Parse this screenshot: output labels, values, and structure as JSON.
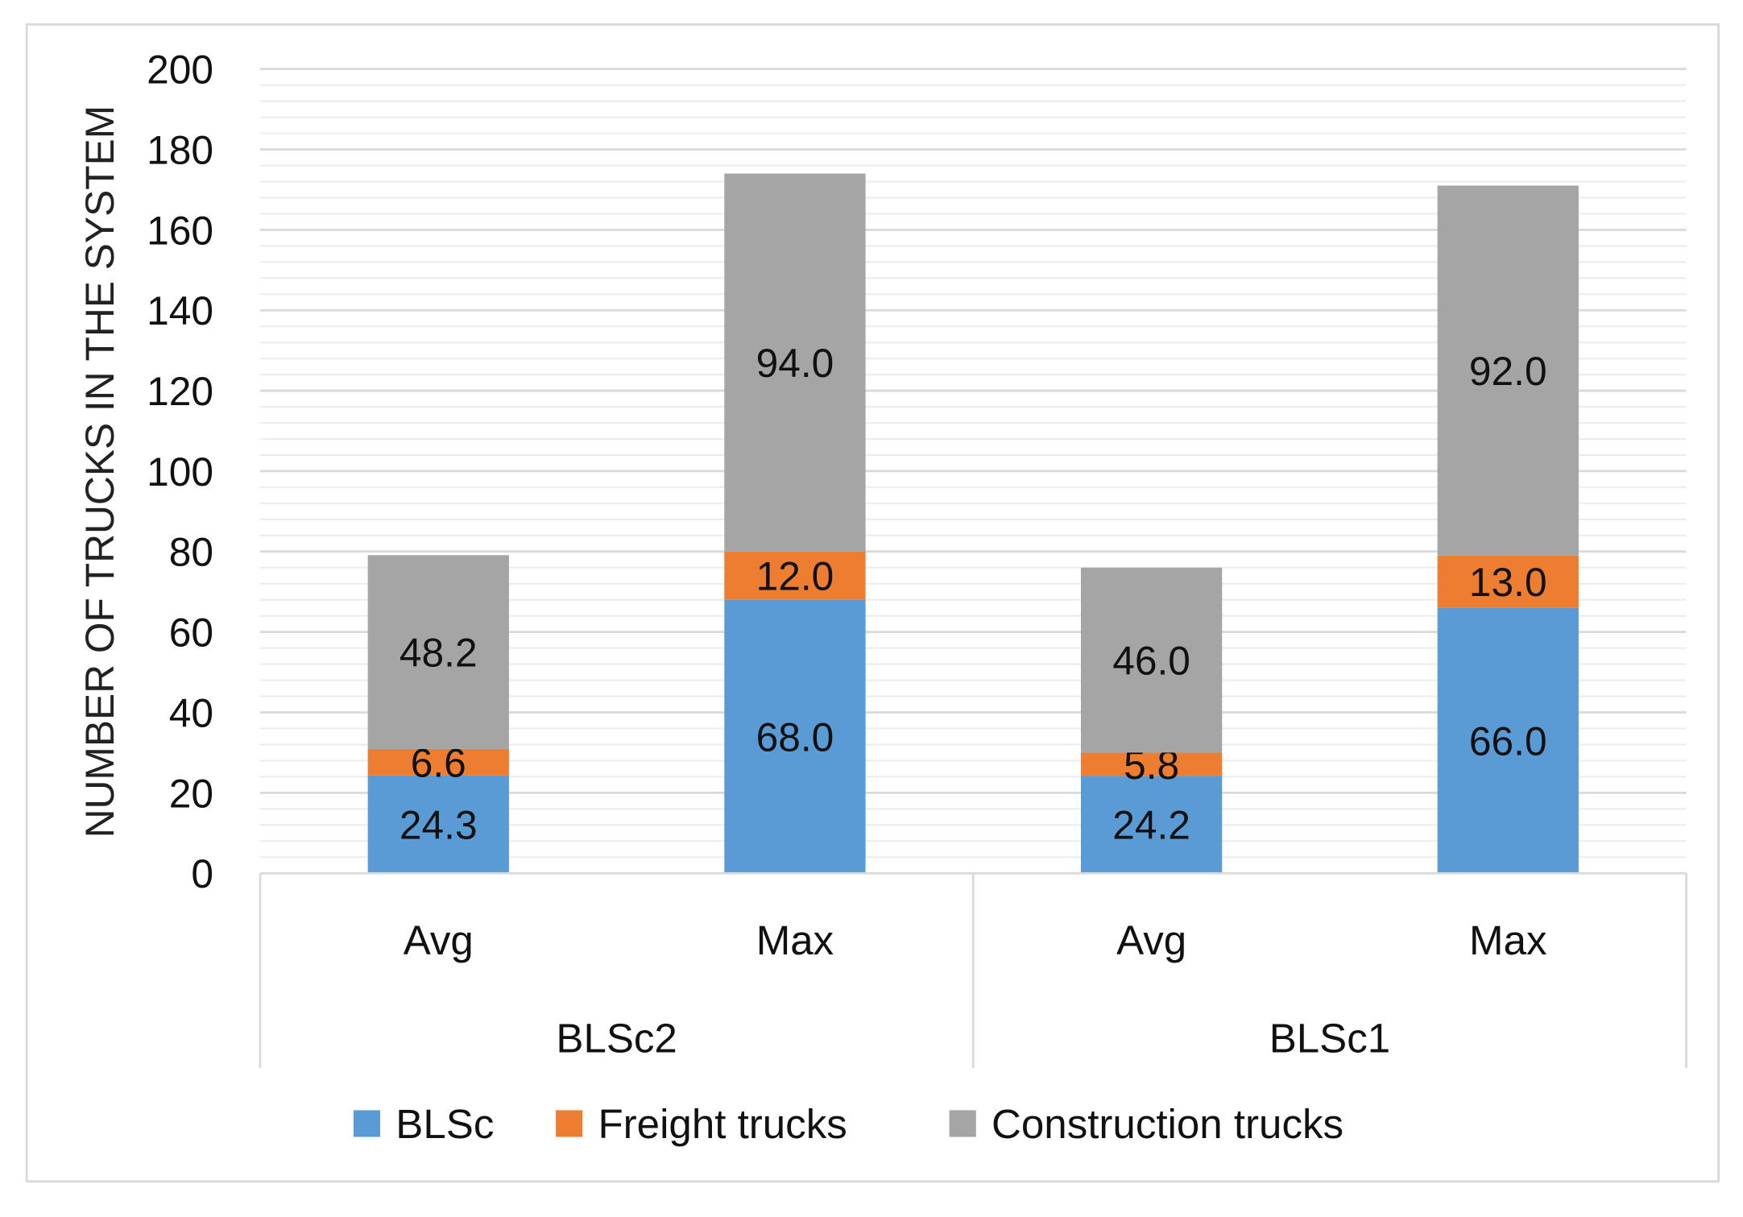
{
  "chart_data": {
    "type": "bar",
    "stacked": true,
    "title": "",
    "xlabel": "",
    "ylabel": "NUMBER OF TRUCKS IN THE SYSTEM",
    "ylim": [
      0,
      200
    ],
    "yticks": [
      0,
      20,
      40,
      60,
      80,
      100,
      120,
      140,
      160,
      180,
      200
    ],
    "grid": true,
    "legend_position": "bottom",
    "groups": [
      {
        "name": "BLSc2",
        "categories": [
          "Avg",
          "Max"
        ]
      },
      {
        "name": "BLSc1",
        "categories": [
          "Avg",
          "Max"
        ]
      }
    ],
    "categories": [
      "Avg",
      "Max",
      "Avg",
      "Max"
    ],
    "series": [
      {
        "name": "BLSc",
        "color": "#5b9bd5",
        "values": [
          24.3,
          68.0,
          24.2,
          66.0
        ],
        "labels": [
          "24.3",
          "68.0",
          "24.2",
          "66.0"
        ]
      },
      {
        "name": "Freight trucks",
        "color": "#ed7d31",
        "values": [
          6.6,
          12.0,
          5.8,
          13.0
        ],
        "labels": [
          "6.6",
          "12.0",
          "5.8",
          "13.0"
        ]
      },
      {
        "name": "Construction trucks",
        "color": "#a5a5a5",
        "values": [
          48.2,
          94.0,
          46.0,
          92.0
        ],
        "labels": [
          "48.2",
          "94.0",
          "46.0",
          "92.0"
        ]
      }
    ]
  }
}
